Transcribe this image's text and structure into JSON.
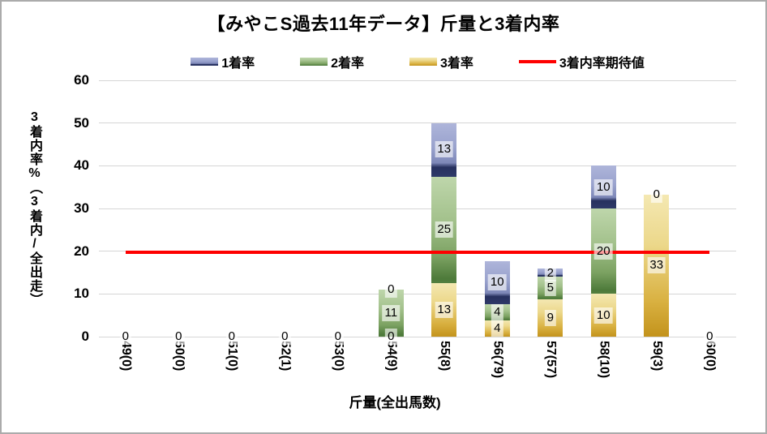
{
  "title": "【みやこS過去11年データ】斤量と3着内率",
  "legend": [
    {
      "label": "1着率",
      "swatch": "blue-bar-swatch"
    },
    {
      "label": "2着率",
      "swatch": "green-bar-swatch"
    },
    {
      "label": "3着率",
      "swatch": "gold-bar-swatch"
    },
    {
      "label": "3着内率期待値",
      "swatch": "red-line-swatch"
    }
  ],
  "y_axis": {
    "title": "3着内率%（3着内/全出走）",
    "ticks": [
      0,
      10,
      20,
      30,
      40,
      50,
      60
    ],
    "max": 60
  },
  "x_axis": {
    "title": "斤量(全出馬数)"
  },
  "colors": {
    "first_rate_blue_light": "#aeb5da",
    "first_rate_blue_dark": "#27315f",
    "second_rate_green_light": "#bed6ab",
    "second_rate_green_dark": "#4d7a3a",
    "third_rate_gold_light": "#f4e8b2",
    "third_rate_gold_dark": "#c3931c",
    "expected_line_red": "#fe0000",
    "gridline_gray": "#d6d6d6",
    "canvas_border_gray": "#ababab"
  },
  "chart_data": {
    "type": "bar",
    "stacked": true,
    "title": "【みやこS過去11年データ】斤量と3着内率",
    "xlabel": "斤量(全出馬数)",
    "ylabel": "3着内率%（3着内/全出走）",
    "ylim": [
      0,
      60
    ],
    "grid": true,
    "legend_position": "top",
    "categories": [
      "49(0)",
      "50(0)",
      "51(0)",
      "52(1)",
      "53(0)",
      "54(9)",
      "55(8)",
      "56(79)",
      "57(57)",
      "58(10)",
      "59(3)",
      "60(0)"
    ],
    "series": [
      {
        "name": "3着率",
        "color": "gold",
        "position": "bottom",
        "values": [
          0,
          0,
          0,
          0,
          0,
          0,
          12.5,
          3.8,
          8.8,
          10,
          33.3,
          0
        ]
      },
      {
        "name": "2着率",
        "color": "green",
        "position": "middle",
        "values": [
          0,
          0,
          0,
          0,
          0,
          11.1,
          25,
          3.8,
          5.3,
          20,
          0,
          0
        ]
      },
      {
        "name": "1着率",
        "color": "blue",
        "position": "top",
        "values": [
          0,
          0,
          0,
          0,
          0,
          0,
          12.5,
          10.1,
          1.8,
          10,
          0,
          0
        ]
      }
    ],
    "line_series": {
      "name": "3着内率期待値",
      "value": 19.7,
      "span": "category 49 center to category 60 center"
    },
    "labels": [
      [
        {
          "t": "0",
          "y": 0
        }
      ],
      [
        {
          "t": "0",
          "y": 0
        }
      ],
      [
        {
          "t": "0",
          "y": 0
        }
      ],
      [
        {
          "t": "0",
          "y": 0
        }
      ],
      [
        {
          "t": "0",
          "y": 0
        }
      ],
      [
        {
          "t": "0",
          "y": 11.1
        },
        {
          "t": "11",
          "y": 5.6
        },
        {
          "t": "0",
          "y": 0
        }
      ],
      [
        {
          "t": "13",
          "y": 43.8
        },
        {
          "t": "25",
          "y": 25
        },
        {
          "t": "13",
          "y": 6.3
        }
      ],
      [
        {
          "t": "10",
          "y": 12.7
        },
        {
          "t": "4",
          "y": 5.7
        },
        {
          "t": "4",
          "y": 1.9
        }
      ],
      [
        {
          "t": "2",
          "y": 14.9
        },
        {
          "t": "5",
          "y": 11.4
        },
        {
          "t": "9",
          "y": 4.4
        }
      ],
      [
        {
          "t": "10",
          "y": 35
        },
        {
          "t": "20",
          "y": 20
        },
        {
          "t": "10",
          "y": 5
        }
      ],
      [
        {
          "t": "0",
          "y": 33.3
        },
        {
          "t": "33",
          "y": 16.7
        }
      ],
      [
        {
          "t": "0",
          "y": 0
        }
      ]
    ]
  }
}
